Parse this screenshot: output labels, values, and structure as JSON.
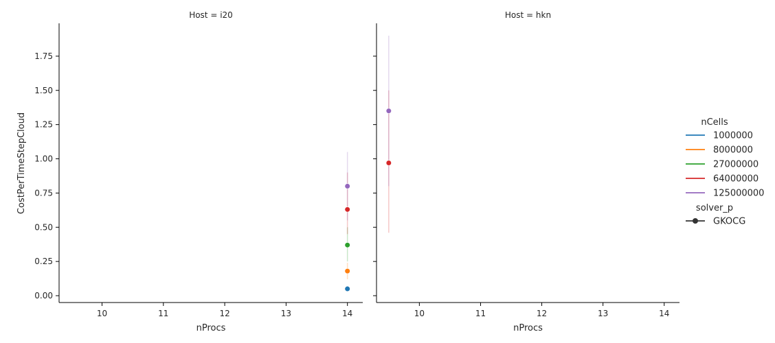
{
  "chart_data": {
    "type": "scatter",
    "shared_ylabel": "CostPerTimeStepCloud",
    "ylim": [
      -0.05,
      1.99
    ],
    "yticks": [
      0.0,
      0.25,
      0.5,
      0.75,
      1.0,
      1.25,
      1.5,
      1.75
    ],
    "ytick_labels": [
      "0.00",
      "0.25",
      "0.50",
      "0.75",
      "1.00",
      "1.25",
      "1.50",
      "1.75"
    ],
    "xlim": [
      9.3,
      14.25
    ],
    "xticks": [
      10,
      11,
      12,
      13,
      14
    ],
    "xtick_labels": [
      "10",
      "11",
      "12",
      "13",
      "14"
    ],
    "grid": false,
    "legend": {
      "placement": "right",
      "hue_title": "nCells",
      "hue_items": [
        {
          "label": "1000000",
          "color": "#1f77b4"
        },
        {
          "label": "8000000",
          "color": "#ff7f0e"
        },
        {
          "label": "27000000",
          "color": "#2ca02c"
        },
        {
          "label": "64000000",
          "color": "#d62728"
        },
        {
          "label": "125000000",
          "color": "#9467bd"
        }
      ],
      "style_title": "solver_p",
      "style_items": [
        {
          "label": "GKOCG",
          "color": "#333333"
        }
      ]
    },
    "panels": [
      {
        "title": "Host = i20",
        "xlabel": "nProcs",
        "points": [
          {
            "nCells": "1000000",
            "x": 14,
            "y": 0.05,
            "ci": [
              0.03,
              0.06
            ]
          },
          {
            "nCells": "8000000",
            "x": 14,
            "y": 0.18,
            "ci": [
              0.12,
              0.24
            ]
          },
          {
            "nCells": "27000000",
            "x": 14,
            "y": 0.37,
            "ci": [
              0.25,
              0.5
            ]
          },
          {
            "nCells": "64000000",
            "x": 14,
            "y": 0.63,
            "ci": [
              0.45,
              0.9
            ]
          },
          {
            "nCells": "125000000",
            "x": 14,
            "y": 0.8,
            "ci": [
              0.55,
              1.05
            ]
          }
        ]
      },
      {
        "title": "Host = hkn",
        "xlabel": "nProcs",
        "points": [
          {
            "nCells": "64000000",
            "x": 9.5,
            "y": 0.97,
            "ci": [
              0.46,
              1.5
            ]
          },
          {
            "nCells": "125000000",
            "x": 9.5,
            "y": 1.35,
            "ci": [
              0.8,
              1.9
            ]
          }
        ]
      }
    ]
  }
}
